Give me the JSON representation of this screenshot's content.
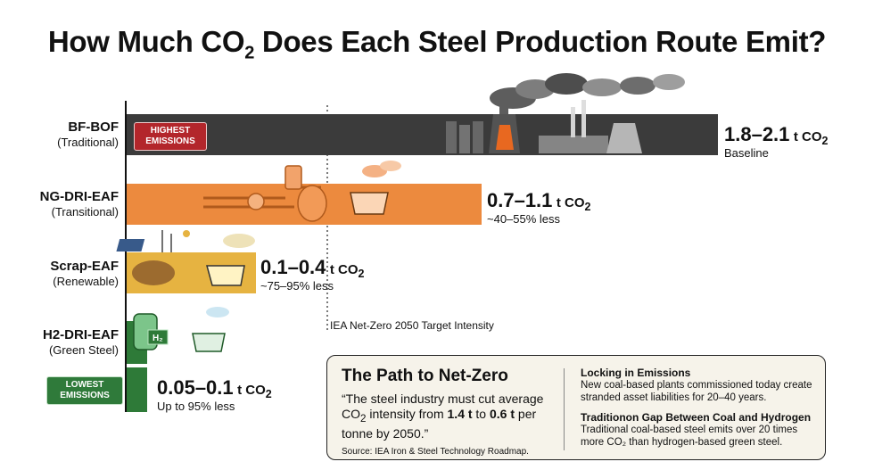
{
  "title": {
    "prefix": "How Much CO",
    "subscript": "2",
    "suffix": " Does Each Steel Production Route Emit?"
  },
  "chart_data": {
    "type": "bar",
    "orientation": "horizontal",
    "categories": [
      "BF-BOF",
      "NG-DRI-EAF",
      "Scrap-EAF",
      "H2-DRI-EAF"
    ],
    "category_notes": [
      "(Traditional)",
      "(Transitional)",
      "(Renewable)",
      "(Green Steel)"
    ],
    "ranges": [
      [
        1.8,
        2.1
      ],
      [
        0.7,
        1.1
      ],
      [
        0.1,
        0.4
      ],
      [
        0.05,
        0.1
      ]
    ],
    "value_labels": [
      "1.8–2.1",
      "0.7–1.1",
      "0.1–0.4",
      "0.05–0.1"
    ],
    "unit": "t CO",
    "unit_subscript": "2",
    "notes": [
      "Baseline",
      "~40–55% less",
      "~75–95% less",
      "Up to 95% less"
    ],
    "colors": [
      "#3b3b3b",
      "#ec8a3e",
      "#e6b341",
      "#2e7a38"
    ],
    "reference_line": {
      "value": 0.6,
      "label": "IEA Net-Zero 2050 Target Intensity"
    },
    "badges": {
      "highest": "HIGHEST EMISSIONS",
      "lowest": "LOWEST EMISSIONS"
    },
    "xlim": [
      0,
      2.1
    ]
  },
  "card": {
    "heading": "The Path to Net-Zero",
    "quote_part1": "“The steel industry must cut average CO",
    "quote_sub": "2",
    "quote_part2": " intensity from ",
    "quote_from": "1.4 t",
    "quote_part3": " to ",
    "quote_to": "0.6 t",
    "quote_part4": " per tonne by 2050.”",
    "source": "Source: IEA Iron & Steel Technology Roadmap.",
    "right_heading1": "Locking in Emissions",
    "right_text1": "New coal-based plants commissioned today create stranded asset liabilities for 20–40 years.",
    "right_heading2": "Traditionon Gap Between Coal and Hydrogen",
    "right_text2": "Traditional coal-based steel emits over 20 times more CO₂ than hydrogen-based green steel."
  }
}
